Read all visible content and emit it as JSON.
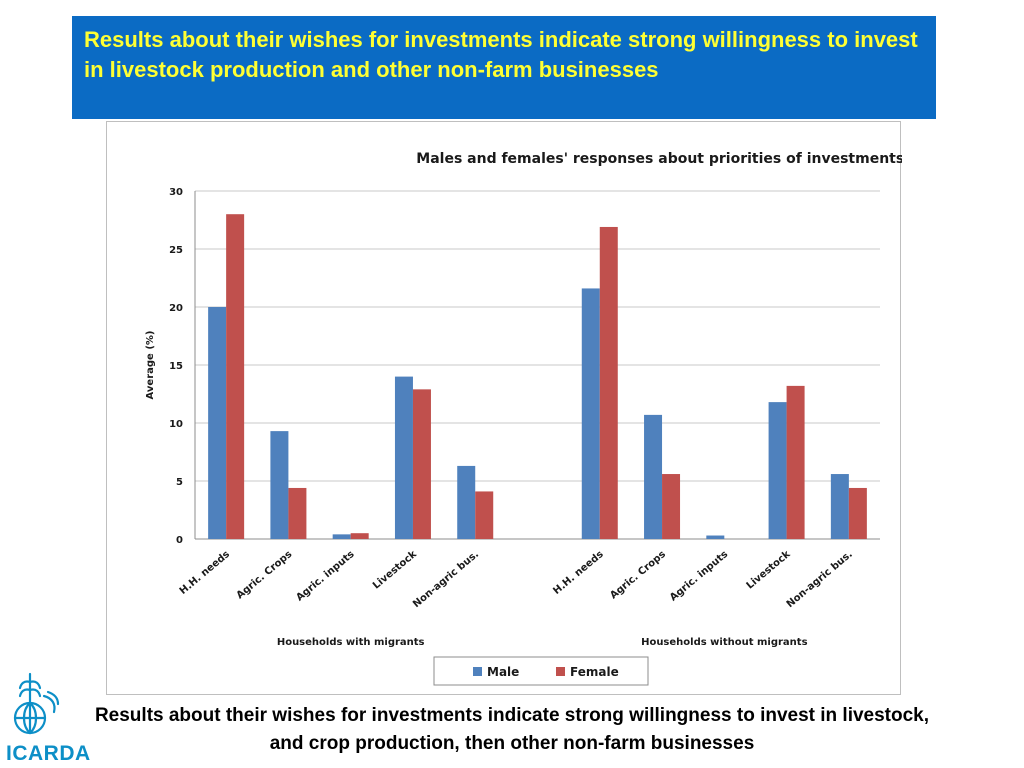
{
  "header": {
    "banner_text": "Results about their wishes for investments indicate strong willingness to invest in livestock production and other non-farm businesses"
  },
  "footer": {
    "line1": "Results about their wishes for investments indicate strong willingness to invest in livestock,",
    "line2": "and crop production, then other non-farm businesses"
  },
  "logo": {
    "text": "ICARDA",
    "icon": "icarda-wheat-globe-icon"
  },
  "colors": {
    "banner_bg": "#0b6bc4",
    "banner_text": "#ffff33",
    "male": "#4f81bd",
    "female": "#c0504d",
    "logo": "#0d8fc7"
  },
  "chart_data": {
    "type": "bar",
    "title": "Males and females' responses about priorities of investments (wishes)",
    "ylabel": "Average (%)",
    "xlabel": "",
    "ylim": [
      0,
      30
    ],
    "yticks": [
      0,
      5,
      10,
      15,
      20,
      25,
      30
    ],
    "grid": true,
    "legend_position": "bottom",
    "groups": [
      {
        "name": "Households with migrants",
        "categories": [
          "H.H. needs",
          "Agric. Crops",
          "Agric. inputs",
          "Livestock",
          "Non-agric bus."
        ]
      },
      {
        "name": "Households without migrants",
        "categories": [
          "H.H. needs",
          "Agric. Crops",
          "Agric. inputs",
          "Livestock",
          "Non-agric bus."
        ]
      }
    ],
    "series": [
      {
        "name": "Male",
        "color": "#4f81bd",
        "values": [
          20.0,
          9.3,
          0.4,
          14.0,
          6.3,
          21.6,
          10.7,
          0.3,
          11.8,
          5.6
        ]
      },
      {
        "name": "Female",
        "color": "#c0504d",
        "values": [
          28.0,
          4.4,
          0.5,
          12.9,
          4.1,
          26.9,
          5.6,
          0.0,
          13.2,
          4.4
        ]
      }
    ]
  }
}
